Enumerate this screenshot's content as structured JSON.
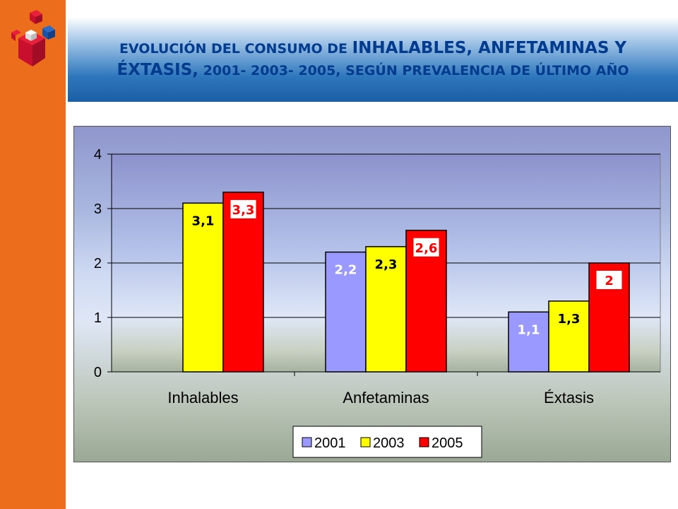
{
  "title": {
    "part1": "EVOLUCIÓN DEL CONSUMO DE",
    "part2": "INHALABLES, ANFETAMINAS Y ÉXTASIS,",
    "part3": "2001- 2003- 2005, SEGÚN PREVALENCIA DE ÚLTIMO AÑO"
  },
  "colors": {
    "sidebar": "#ec6d1b",
    "title_text": "#003b8e",
    "series_2001": "#9999ff",
    "series_2003": "#ffff00",
    "series_2005": "#ff0000"
  },
  "logo": {
    "icon": "cube-logo-icon"
  },
  "chart_data": {
    "type": "bar",
    "categories": [
      "Inhalables",
      "Anfetaminas",
      "Éxtasis"
    ],
    "series": [
      {
        "name": "2001",
        "values": [
          null,
          2.2,
          1.1
        ],
        "labels": [
          "",
          "2,2",
          "1,1"
        ],
        "label_color": "#ffffff"
      },
      {
        "name": "2003",
        "values": [
          3.1,
          2.3,
          1.3
        ],
        "labels": [
          "3,1",
          "2,3",
          "1,3"
        ],
        "label_color": "#000000"
      },
      {
        "name": "2005",
        "values": [
          3.3,
          2.6,
          2.0
        ],
        "labels": [
          "3,3",
          "2,6",
          "2"
        ],
        "label_color": "#ff0000"
      }
    ],
    "ylim": [
      0,
      4
    ],
    "yticks": [
      "0",
      "1",
      "2",
      "3",
      "4"
    ],
    "grid": true,
    "legend_position": "bottom-center"
  }
}
